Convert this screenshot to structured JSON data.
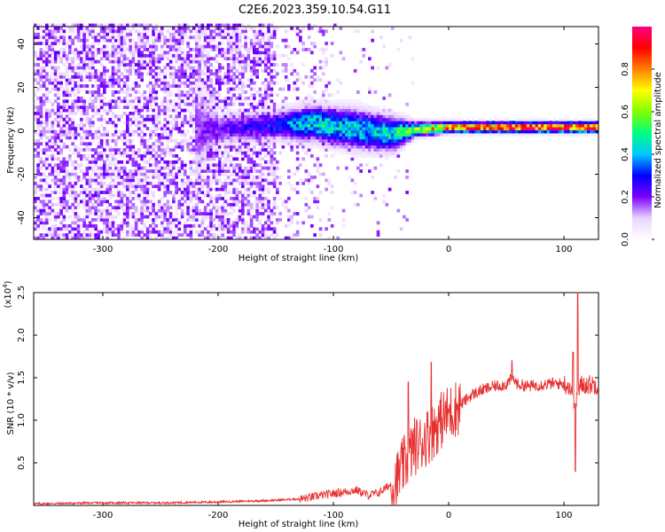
{
  "title": "C2E6.2023.359.10.54.G11",
  "chart_data": [
    {
      "type": "heatmap",
      "xlabel": "Height of straight line (km)",
      "ylabel": "Frequency (Hz)",
      "xlim": [
        -360,
        130
      ],
      "ylim": [
        -50,
        48
      ],
      "xticks": [
        -300,
        -200,
        -100,
        0,
        100
      ],
      "yticks": [
        -40,
        -20,
        0,
        20,
        40
      ],
      "colorbar": {
        "label": "Normalized spectral amplitude",
        "range": [
          0.0,
          1.0
        ],
        "ticks": [
          0.0,
          0.2,
          0.4,
          0.6,
          0.8
        ],
        "colormap": [
          "#ffffff",
          "#e8d4ff",
          "#7a00ff",
          "#0000ff",
          "#00c8ff",
          "#00ff80",
          "#80ff00",
          "#ffff00",
          "#ff8000",
          "#ff0000",
          "#ff0080"
        ]
      },
      "ridge": [
        {
          "x": -360,
          "f": 0,
          "amp": 0.08,
          "width": 45
        },
        {
          "x": -250,
          "f": 0,
          "amp": 0.12,
          "width": 40
        },
        {
          "x": -200,
          "f": 0,
          "amp": 0.2,
          "width": 6
        },
        {
          "x": -150,
          "f": 2,
          "amp": 0.3,
          "width": 6
        },
        {
          "x": -120,
          "f": 3,
          "amp": 0.45,
          "width": 7
        },
        {
          "x": -80,
          "f": 0,
          "amp": 0.42,
          "width": 8
        },
        {
          "x": -50,
          "f": -2,
          "amp": 0.45,
          "width": 7
        },
        {
          "x": -30,
          "f": 0,
          "amp": 0.55,
          "width": 3
        },
        {
          "x": 0,
          "f": 1,
          "amp": 0.85,
          "width": 2
        },
        {
          "x": 50,
          "f": 1,
          "amp": 0.9,
          "width": 2
        },
        {
          "x": 100,
          "f": 1,
          "amp": 0.95,
          "width": 2
        },
        {
          "x": 130,
          "f": 1,
          "amp": 0.9,
          "width": 2
        }
      ]
    },
    {
      "type": "line",
      "xlabel": "Height of straight line (km)",
      "ylabel": "SNR (10 * v/v)",
      "scale_label": "(x10",
      "scale_exp": "4",
      "scale_close": ")",
      "xlim": [
        -360,
        130
      ],
      "ylim": [
        0,
        2.5
      ],
      "xticks": [
        -300,
        -200,
        -100,
        0,
        100
      ],
      "yticks": [
        0.5,
        1.0,
        1.5,
        2.0,
        2.5
      ],
      "ytick_labels": [
        "0.5",
        "1.0",
        "1.5",
        "2.0",
        "2.5"
      ],
      "color": "#e83030",
      "series": [
        {
          "x": [
            -360,
            -300,
            -250,
            -200,
            -150,
            -125,
            -110,
            -100,
            -90,
            -80,
            -70,
            -60,
            -50,
            -45,
            -40,
            -35,
            -30,
            -25,
            -20,
            -15,
            -10,
            -5,
            0,
            10,
            20,
            30,
            40,
            50,
            55,
            60,
            70,
            80,
            90,
            100,
            105,
            110,
            115,
            120,
            130
          ],
          "y": [
            0.02,
            0.03,
            0.03,
            0.04,
            0.06,
            0.08,
            0.12,
            0.14,
            0.16,
            0.18,
            0.12,
            0.15,
            0.25,
            0.3,
            0.45,
            0.55,
            0.7,
            0.72,
            0.8,
            0.85,
            0.95,
            1.02,
            1.08,
            1.18,
            1.3,
            1.36,
            1.4,
            1.42,
            1.5,
            1.42,
            1.4,
            1.42,
            1.43,
            1.43,
            1.4,
            1.2,
            1.42,
            1.42,
            1.42
          ]
        }
      ],
      "peaks": [
        {
          "x": -35,
          "y": 1.45
        },
        {
          "x": -15,
          "y": 1.68
        },
        {
          "x": 55,
          "y": 1.7
        },
        {
          "x": 108,
          "y": 1.8
        },
        {
          "x": 112,
          "y": 2.5
        },
        {
          "x": 110,
          "y": 0.4
        }
      ]
    }
  ]
}
